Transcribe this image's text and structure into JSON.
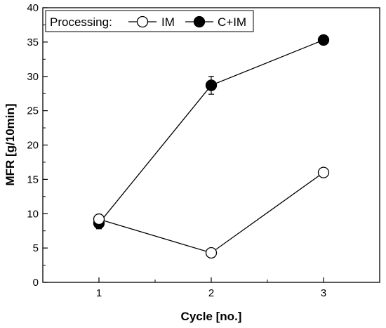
{
  "chart_data": {
    "type": "line",
    "xlabel": "Cycle [no.]",
    "ylabel": "MFR [g/10min]",
    "x": [
      1,
      2,
      3
    ],
    "xlim": [
      0.5,
      3.5
    ],
    "ylim": [
      0,
      40
    ],
    "xticks": [
      1,
      2,
      3
    ],
    "yticks": [
      0,
      5,
      10,
      15,
      20,
      25,
      30,
      35,
      40
    ],
    "grid": false,
    "legend": {
      "placement": "top-left",
      "title": "Processing:",
      "entries": [
        "IM",
        "C+IM"
      ]
    },
    "series": [
      {
        "name": "IM",
        "values": [
          9.2,
          4.3,
          16.0
        ],
        "errors": [
          0,
          0,
          0
        ],
        "marker": "open-circle",
        "color": "#000000"
      },
      {
        "name": "C+IM",
        "values": [
          8.6,
          28.7,
          35.3
        ],
        "errors": [
          0.8,
          1.3,
          0.3
        ],
        "marker": "filled-circle",
        "color": "#000000"
      }
    ]
  }
}
